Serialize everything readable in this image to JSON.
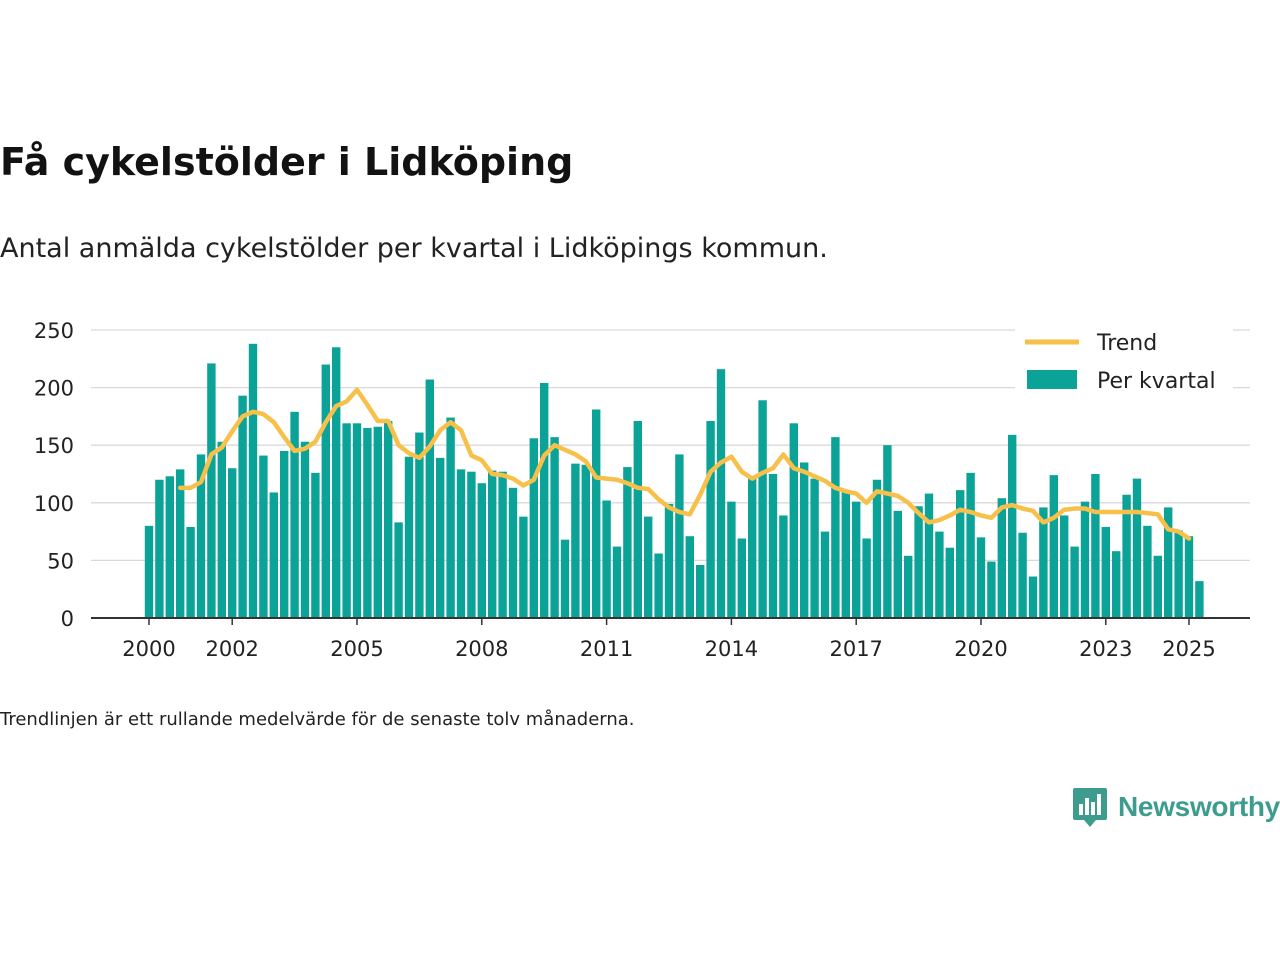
{
  "title": "Få cykelstölder i Lidköping",
  "subtitle": "Antal anmälda cykelstölder per kvartal i Lidköpings kommun.",
  "footnote": "Trendlinjen är ett rullande medelvärde för de senaste tolv månaderna.",
  "brand": "Newsworthy",
  "colors": {
    "bar": "#0ba397",
    "trend": "#f7c04a",
    "grid": "#d9d9d9",
    "axis": "#333333",
    "brand": "#3e9c8f"
  },
  "chart_data": {
    "type": "bar",
    "legend": [
      "Trend",
      "Per kvartal"
    ],
    "legend_position": "top-right",
    "grid": true,
    "ylim": [
      0,
      250
    ],
    "y_ticks": [
      0,
      50,
      100,
      150,
      200,
      250
    ],
    "x_ticks": [
      "2000",
      "2002",
      "2005",
      "2008",
      "2011",
      "2014",
      "2017",
      "2020",
      "2023",
      "2025"
    ],
    "x_start": "2000-Q1",
    "series": [
      {
        "name": "Per kvartal",
        "type": "bar",
        "values": [
          80,
          120,
          123,
          129,
          79,
          142,
          221,
          153,
          130,
          193,
          238,
          141,
          109,
          145,
          179,
          153,
          126,
          220,
          235,
          169,
          169,
          165,
          166,
          171,
          83,
          140,
          161,
          207,
          139,
          174,
          129,
          127,
          117,
          128,
          127,
          113,
          88,
          156,
          204,
          157,
          68,
          134,
          133,
          181,
          102,
          62,
          131,
          171,
          88,
          56,
          99,
          142,
          71,
          46,
          171,
          216,
          101,
          69,
          121,
          189,
          125,
          89,
          169,
          135,
          121,
          75,
          157,
          110,
          101,
          69,
          120,
          150,
          93,
          54,
          97,
          108,
          75,
          61,
          111,
          126,
          70,
          49,
          104,
          159,
          74,
          36,
          96,
          124,
          89,
          62,
          101,
          125,
          79,
          58,
          107,
          121,
          80,
          54,
          96,
          76,
          71,
          32
        ]
      },
      {
        "name": "Trend",
        "type": "line",
        "values": [
          null,
          null,
          null,
          113,
          113,
          118,
          142,
          148,
          162,
          175,
          179,
          177,
          170,
          157,
          145,
          147,
          153,
          170,
          184,
          188,
          198,
          185,
          171,
          171,
          150,
          143,
          139,
          149,
          163,
          170,
          163,
          141,
          137,
          125,
          124,
          121,
          115,
          120,
          141,
          150,
          146,
          142,
          136,
          122,
          121,
          120,
          117,
          113,
          112,
          103,
          96,
          92,
          90,
          107,
          127,
          135,
          140,
          127,
          121,
          126,
          130,
          142,
          130,
          127,
          123,
          119,
          113,
          110,
          108,
          100,
          110,
          108,
          106,
          100,
          91,
          83,
          85,
          89,
          94,
          92,
          89,
          87,
          96,
          98,
          95,
          93,
          83,
          87,
          94,
          95,
          95,
          92,
          92,
          92,
          92,
          92,
          91,
          90,
          77,
          75,
          69,
          null
        ]
      }
    ]
  }
}
